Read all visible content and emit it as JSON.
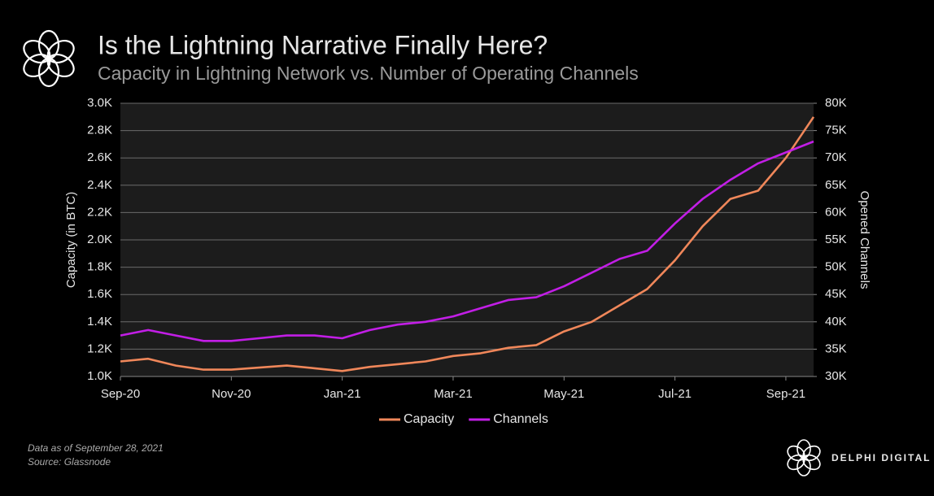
{
  "chart_data": {
    "type": "line",
    "title": "Is the Lightning Narrative Finally Here?",
    "subtitle": "Capacity in Lightning Network vs. Number of Operating Channels",
    "y_label": "Capacity (in BTC)",
    "y2_label": "Opened Channels",
    "categories": [
      "Sep-20",
      null,
      null,
      null,
      "Nov-20",
      null,
      null,
      null,
      "Jan-21",
      null,
      null,
      null,
      "Mar-21",
      null,
      null,
      null,
      "May-21",
      null,
      null,
      null,
      "Jul-21",
      null,
      null,
      null,
      "Sep-21",
      null
    ],
    "series": [
      {
        "name": "Capacity",
        "color": "#f0875a",
        "values": [
          1110,
          1130,
          1080,
          1050,
          1050,
          1065,
          1080,
          1060,
          1040,
          1070,
          1090,
          1110,
          1150,
          1170,
          1210,
          1230,
          1330,
          1400,
          1520,
          1640,
          1850,
          2100,
          2300,
          2360,
          2600,
          2900
        ]
      },
      {
        "name": "Channels",
        "color": "#c21ee6",
        "axis": "y2",
        "values": [
          37500,
          38500,
          37500,
          36500,
          36500,
          37000,
          37500,
          37500,
          37000,
          38500,
          39500,
          40000,
          41000,
          42500,
          44000,
          44500,
          46500,
          49000,
          51500,
          53000,
          58000,
          62500,
          66000,
          69000,
          71000,
          73000
        ]
      }
    ],
    "ylim": [
      1000,
      3000
    ],
    "yticks": [
      {
        "value": 1000,
        "label": "1.0K"
      },
      {
        "value": 1200,
        "label": "1.2K"
      },
      {
        "value": 1400,
        "label": "1.4K"
      },
      {
        "value": 1600,
        "label": "1.6K"
      },
      {
        "value": 1800,
        "label": "1.8K"
      },
      {
        "value": 2000,
        "label": "2.0K"
      },
      {
        "value": 2200,
        "label": "2.2K"
      },
      {
        "value": 2400,
        "label": "2.4K"
      },
      {
        "value": 2600,
        "label": "2.6K"
      },
      {
        "value": 2800,
        "label": "2.8K"
      },
      {
        "value": 3000,
        "label": "3.0K"
      }
    ],
    "y2lim": [
      30000,
      80000
    ],
    "y2ticks": [
      {
        "value": 30000,
        "label": "30K"
      },
      {
        "value": 35000,
        "label": "35K"
      },
      {
        "value": 40000,
        "label": "40K"
      },
      {
        "value": 45000,
        "label": "45K"
      },
      {
        "value": 50000,
        "label": "50K"
      },
      {
        "value": 55000,
        "label": "55K"
      },
      {
        "value": 60000,
        "label": "60K"
      },
      {
        "value": 65000,
        "label": "65K"
      },
      {
        "value": 70000,
        "label": "70K"
      },
      {
        "value": 75000,
        "label": "75K"
      },
      {
        "value": 80000,
        "label": "80K"
      }
    ],
    "grid": true,
    "legend": "bottom",
    "note": "Data as of September 28, 2021",
    "source": "Source: Glassnode",
    "brand": "DELPHI DIGITAL"
  }
}
